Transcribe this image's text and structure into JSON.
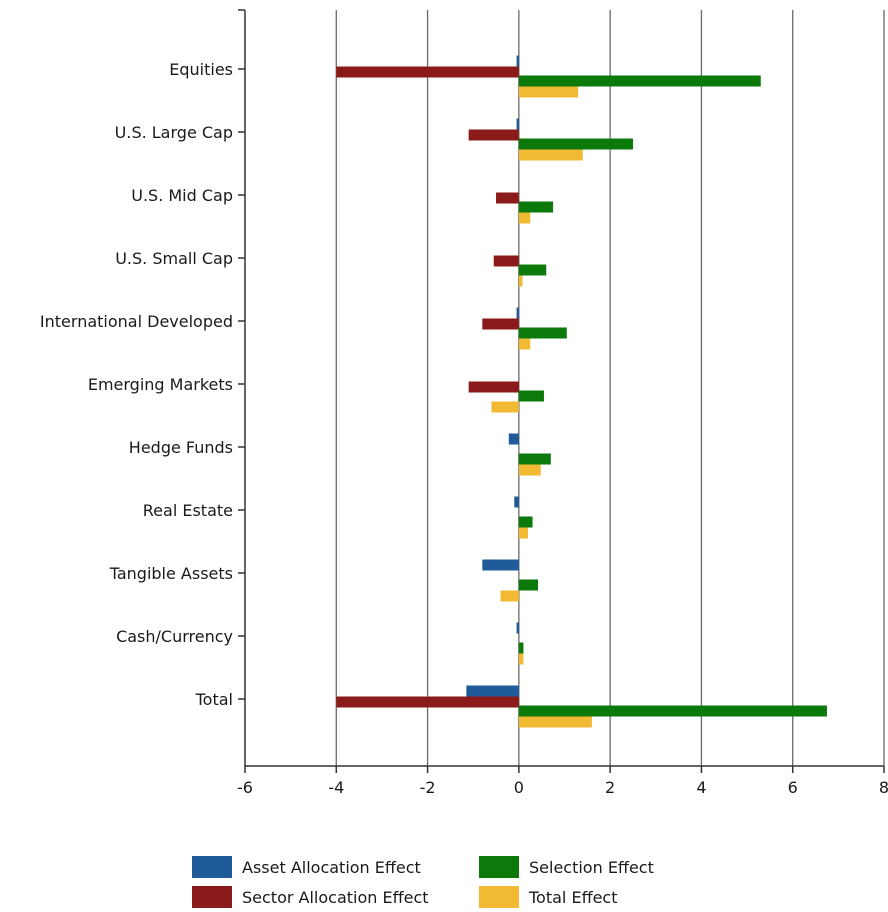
{
  "chart_data": {
    "type": "bar",
    "orientation": "horizontal",
    "categories": [
      "Equities",
      "U.S. Large Cap",
      "U.S. Mid Cap",
      "U.S. Small Cap",
      "International Developed",
      "Emerging Markets",
      "Hedge Funds",
      "Real Estate",
      "Tangible Assets",
      "Cash/Currency",
      "Total"
    ],
    "series": [
      {
        "name": "Asset Allocation Effect",
        "color": "#1f5b99",
        "values": [
          -0.05,
          -0.05,
          0,
          0,
          -0.05,
          0,
          -0.22,
          -0.1,
          -0.8,
          -0.05,
          -1.15
        ]
      },
      {
        "name": "Sector Allocation Effect",
        "color": "#8b1a1a",
        "values": [
          -4.0,
          -1.1,
          -0.5,
          -0.55,
          -0.8,
          -1.1,
          0,
          0,
          0,
          0,
          -4.0
        ]
      },
      {
        "name": "Selection Effect",
        "color": "#0b7a0b",
        "values": [
          5.3,
          2.5,
          0.75,
          0.6,
          1.05,
          0.55,
          0.7,
          0.3,
          0.42,
          0.1,
          6.75
        ]
      },
      {
        "name": "Total Effect",
        "color": "#f2b933",
        "values": [
          1.3,
          1.4,
          0.25,
          0.08,
          0.25,
          -0.6,
          0.48,
          0.2,
          -0.4,
          0.1,
          1.6
        ]
      }
    ],
    "xlim": [
      -6,
      8
    ],
    "xticks": [
      -6,
      -4,
      -2,
      0,
      2,
      4,
      6,
      8
    ],
    "grid": "vertical",
    "legend_position": "bottom",
    "title": "",
    "xlabel": "",
    "ylabel": ""
  }
}
